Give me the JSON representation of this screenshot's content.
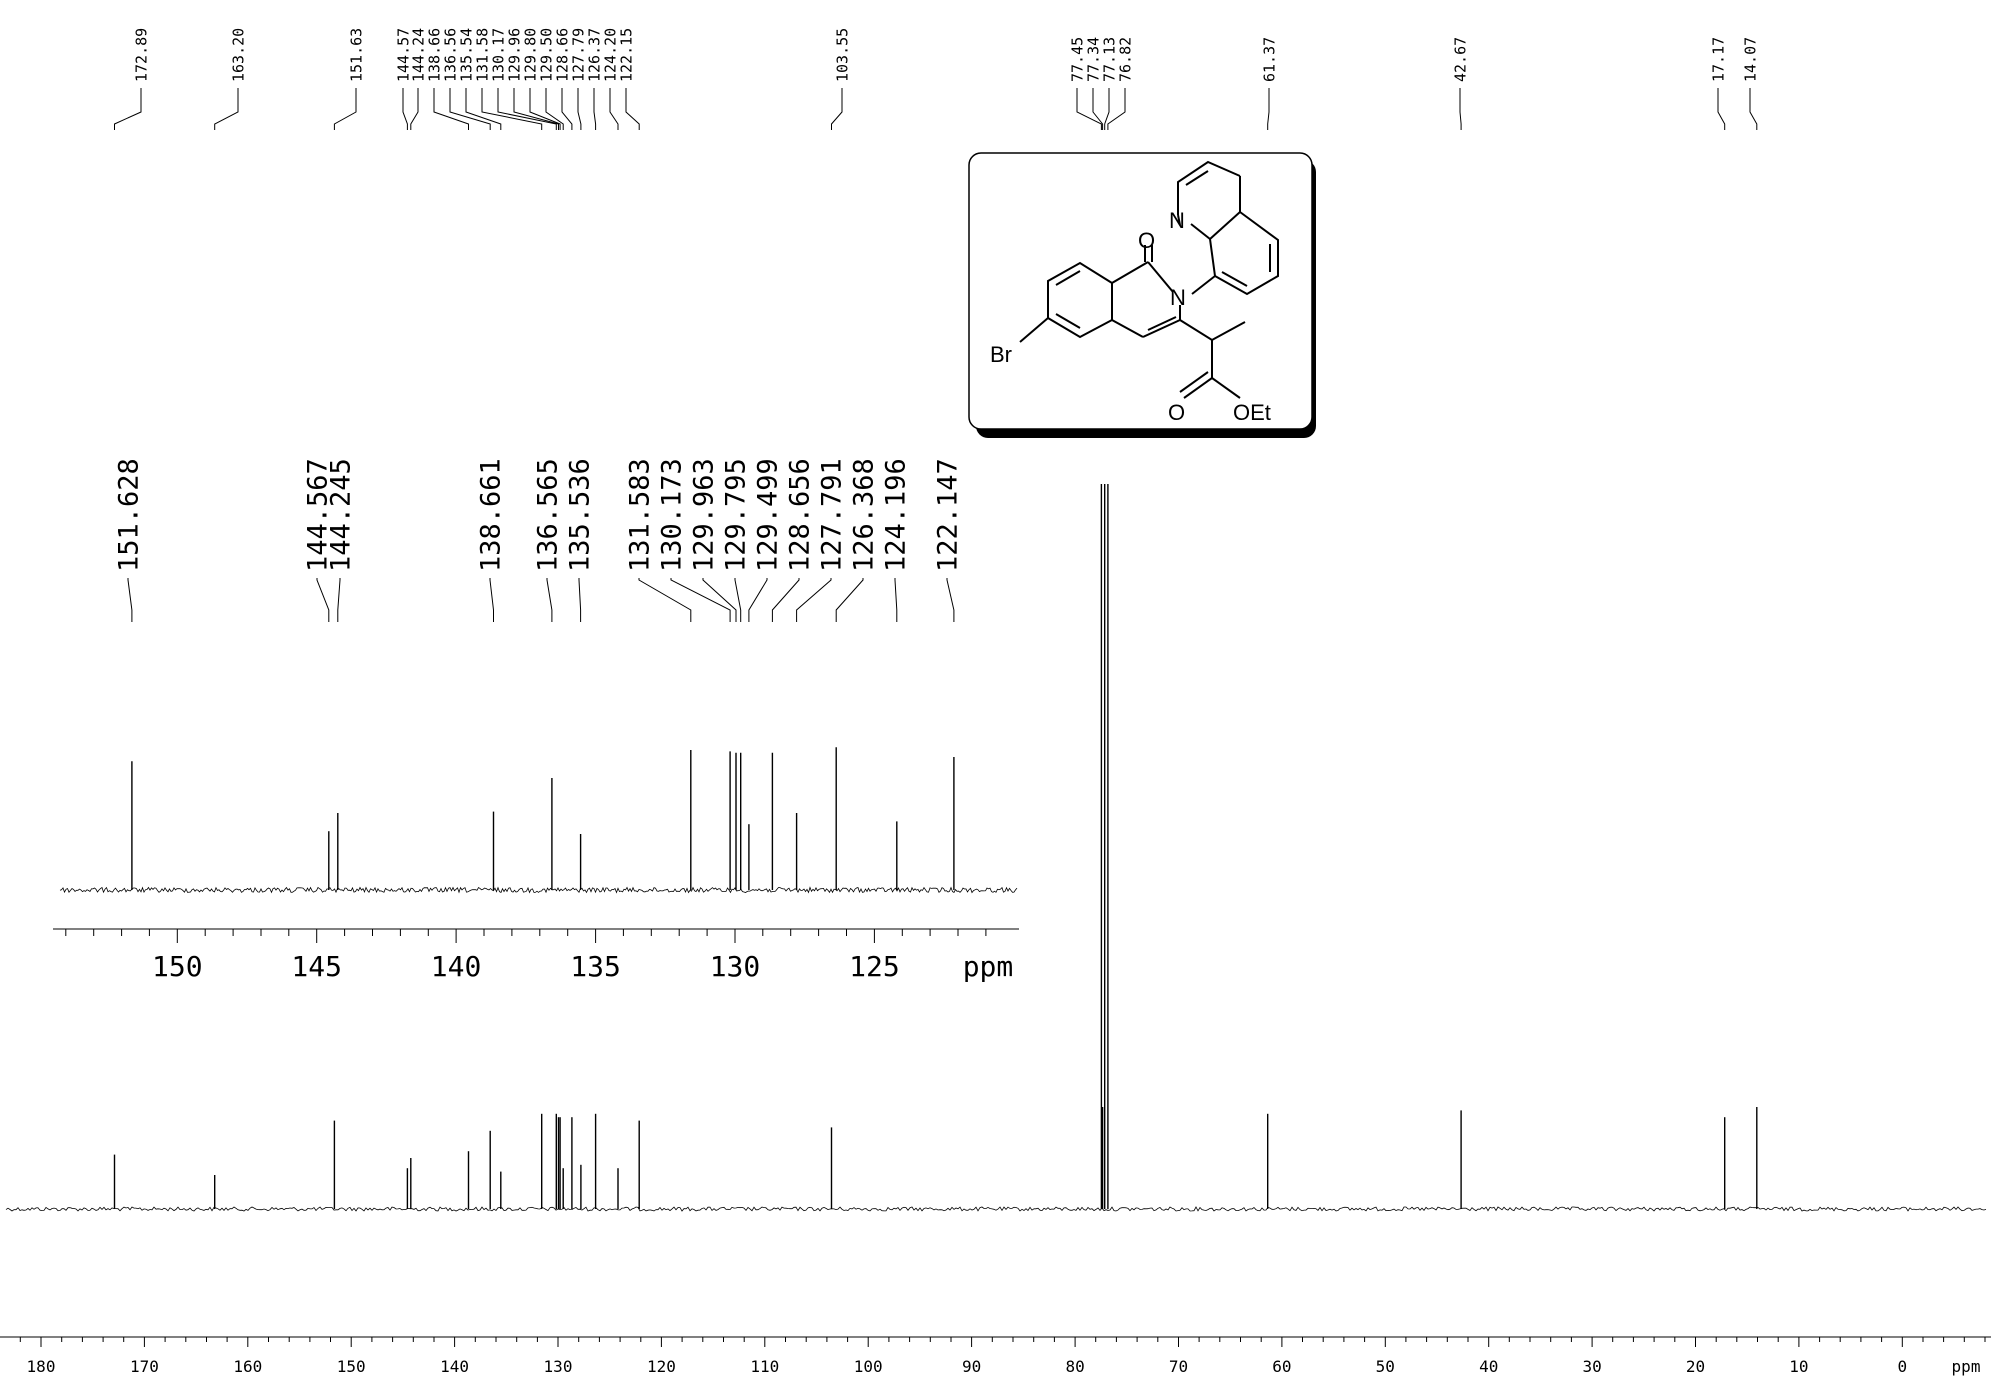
{
  "chart_data": [
    {
      "type": "line",
      "name_of_view": "full spectrum",
      "xlabel": "ppm",
      "xlim": [
        183,
        -8
      ],
      "x_ticks": [
        180,
        170,
        160,
        150,
        140,
        130,
        120,
        110,
        100,
        90,
        80,
        70,
        60,
        50,
        40,
        30,
        20,
        10,
        0
      ],
      "peak_labels": [
        "172.89",
        "163.20",
        "151.63",
        "144.57",
        "144.24",
        "138.66",
        "136.56",
        "135.54",
        "131.58",
        "130.17",
        "129.96",
        "129.80",
        "129.50",
        "128.66",
        "127.79",
        "126.37",
        "124.20",
        "122.15",
        "103.55",
        "77.45",
        "77.34",
        "77.13",
        "76.82",
        "61.37",
        "42.67",
        "17.17",
        "14.07"
      ],
      "peaks": [
        {
          "ppm": 172.89,
          "intensity": 0.16
        },
        {
          "ppm": 163.2,
          "intensity": 0.1
        },
        {
          "ppm": 151.63,
          "intensity": 0.26
        },
        {
          "ppm": 144.57,
          "intensity": 0.12
        },
        {
          "ppm": 144.24,
          "intensity": 0.15
        },
        {
          "ppm": 138.66,
          "intensity": 0.17
        },
        {
          "ppm": 136.56,
          "intensity": 0.23
        },
        {
          "ppm": 135.54,
          "intensity": 0.11
        },
        {
          "ppm": 131.58,
          "intensity": 0.28
        },
        {
          "ppm": 130.17,
          "intensity": 0.28
        },
        {
          "ppm": 129.96,
          "intensity": 0.27
        },
        {
          "ppm": 129.8,
          "intensity": 0.27
        },
        {
          "ppm": 129.5,
          "intensity": 0.12
        },
        {
          "ppm": 128.66,
          "intensity": 0.27
        },
        {
          "ppm": 127.79,
          "intensity": 0.13
        },
        {
          "ppm": 126.37,
          "intensity": 0.28
        },
        {
          "ppm": 124.2,
          "intensity": 0.12
        },
        {
          "ppm": 122.15,
          "intensity": 0.26
        },
        {
          "ppm": 103.55,
          "intensity": 0.24
        },
        {
          "ppm": 77.45,
          "intensity": 2.9
        },
        {
          "ppm": 77.34,
          "intensity": 0.3
        },
        {
          "ppm": 77.13,
          "intensity": 2.9
        },
        {
          "ppm": 76.82,
          "intensity": 2.9
        },
        {
          "ppm": 61.37,
          "intensity": 0.28
        },
        {
          "ppm": 42.67,
          "intensity": 0.29
        },
        {
          "ppm": 17.17,
          "intensity": 0.27
        },
        {
          "ppm": 14.07,
          "intensity": 0.3
        }
      ]
    },
    {
      "type": "line",
      "name_of_view": "expansion",
      "xlabel": "ppm",
      "xlim": [
        154.1,
        120.1
      ],
      "x_ticks": [
        150,
        145,
        140,
        135,
        130,
        125
      ],
      "peak_labels": [
        "151.628",
        "144.567",
        "144.245",
        "138.661",
        "136.565",
        "135.536",
        "131.583",
        "130.173",
        "129.963",
        "129.795",
        "129.499",
        "128.656",
        "127.791",
        "126.368",
        "124.196",
        "122.147"
      ],
      "peaks": [
        {
          "ppm": 151.628,
          "intensity": 0.92
        },
        {
          "ppm": 144.567,
          "intensity": 0.42
        },
        {
          "ppm": 144.245,
          "intensity": 0.55
        },
        {
          "ppm": 138.661,
          "intensity": 0.56
        },
        {
          "ppm": 136.565,
          "intensity": 0.8
        },
        {
          "ppm": 135.536,
          "intensity": 0.4
        },
        {
          "ppm": 131.583,
          "intensity": 1.0
        },
        {
          "ppm": 130.173,
          "intensity": 0.99
        },
        {
          "ppm": 129.963,
          "intensity": 0.98
        },
        {
          "ppm": 129.795,
          "intensity": 0.98
        },
        {
          "ppm": 129.499,
          "intensity": 0.47
        },
        {
          "ppm": 128.656,
          "intensity": 0.98
        },
        {
          "ppm": 127.791,
          "intensity": 0.55
        },
        {
          "ppm": 126.368,
          "intensity": 1.02
        },
        {
          "ppm": 124.196,
          "intensity": 0.49
        },
        {
          "ppm": 122.147,
          "intensity": 0.95
        }
      ]
    }
  ],
  "structure": {
    "atom_labels": {
      "o_carbonyl": "O",
      "n_quinoline": "N",
      "n_ring": "N",
      "br": "Br",
      "o_ester": "O",
      "oet": "OEt"
    }
  }
}
